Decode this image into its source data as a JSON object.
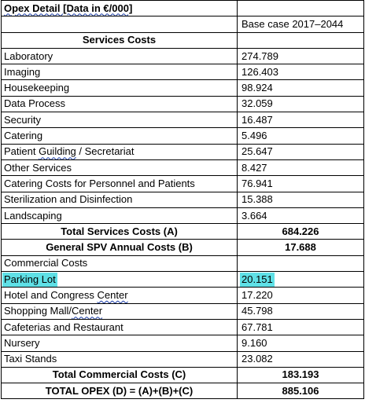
{
  "title": "Opex Detail [Data in €/000]",
  "base_case_label": "Base case 2017–2044",
  "services_header": "Services Costs",
  "services": [
    {
      "label": "Laboratory",
      "value": "274.789"
    },
    {
      "label": "Imaging",
      "value": "126.403"
    },
    {
      "label": "Housekeeping",
      "value": "98.924"
    },
    {
      "label": "Data Process",
      "value": "32.059"
    },
    {
      "label": "Security",
      "value": "16.487"
    },
    {
      "label": "Catering",
      "value": "5.496"
    },
    {
      "label": "Patient Guilding / Secretariat",
      "value": "25.647"
    },
    {
      "label": "Other Services",
      "value": "8.427"
    },
    {
      "label": "Catering Costs for Personnel and Patients",
      "value": "76.941"
    },
    {
      "label": "Sterilization and Disinfection",
      "value": "15.388"
    },
    {
      "label": "Landscaping",
      "value": "3.664"
    }
  ],
  "total_services": {
    "label": "Total Services Costs (A)",
    "value": "684.226"
  },
  "general_spv": {
    "label": "General SPV Annual Costs (B)",
    "value": "17.688"
  },
  "commercial_header": "Commercial Costs",
  "commercial": [
    {
      "label": "Parking Lot",
      "value": "20.151"
    },
    {
      "label": "Hotel and Congress Center",
      "value": "17.220"
    },
    {
      "label": "Shopping Mall/Center",
      "value": "45.798"
    },
    {
      "label": "Cafeterias and Restaurant",
      "value": "67.781"
    },
    {
      "label": "Nursery",
      "value": "9.160"
    },
    {
      "label": "Taxi Stands",
      "value": "23.082"
    }
  ],
  "total_commercial": {
    "label": "Total Commercial Costs (C)",
    "value": "183.193"
  },
  "total_opex": {
    "label": "TOTAL OPEX (D) = (A)+(B)+(C)",
    "value": "885.106"
  },
  "highlight_color": "#5fe0e6"
}
